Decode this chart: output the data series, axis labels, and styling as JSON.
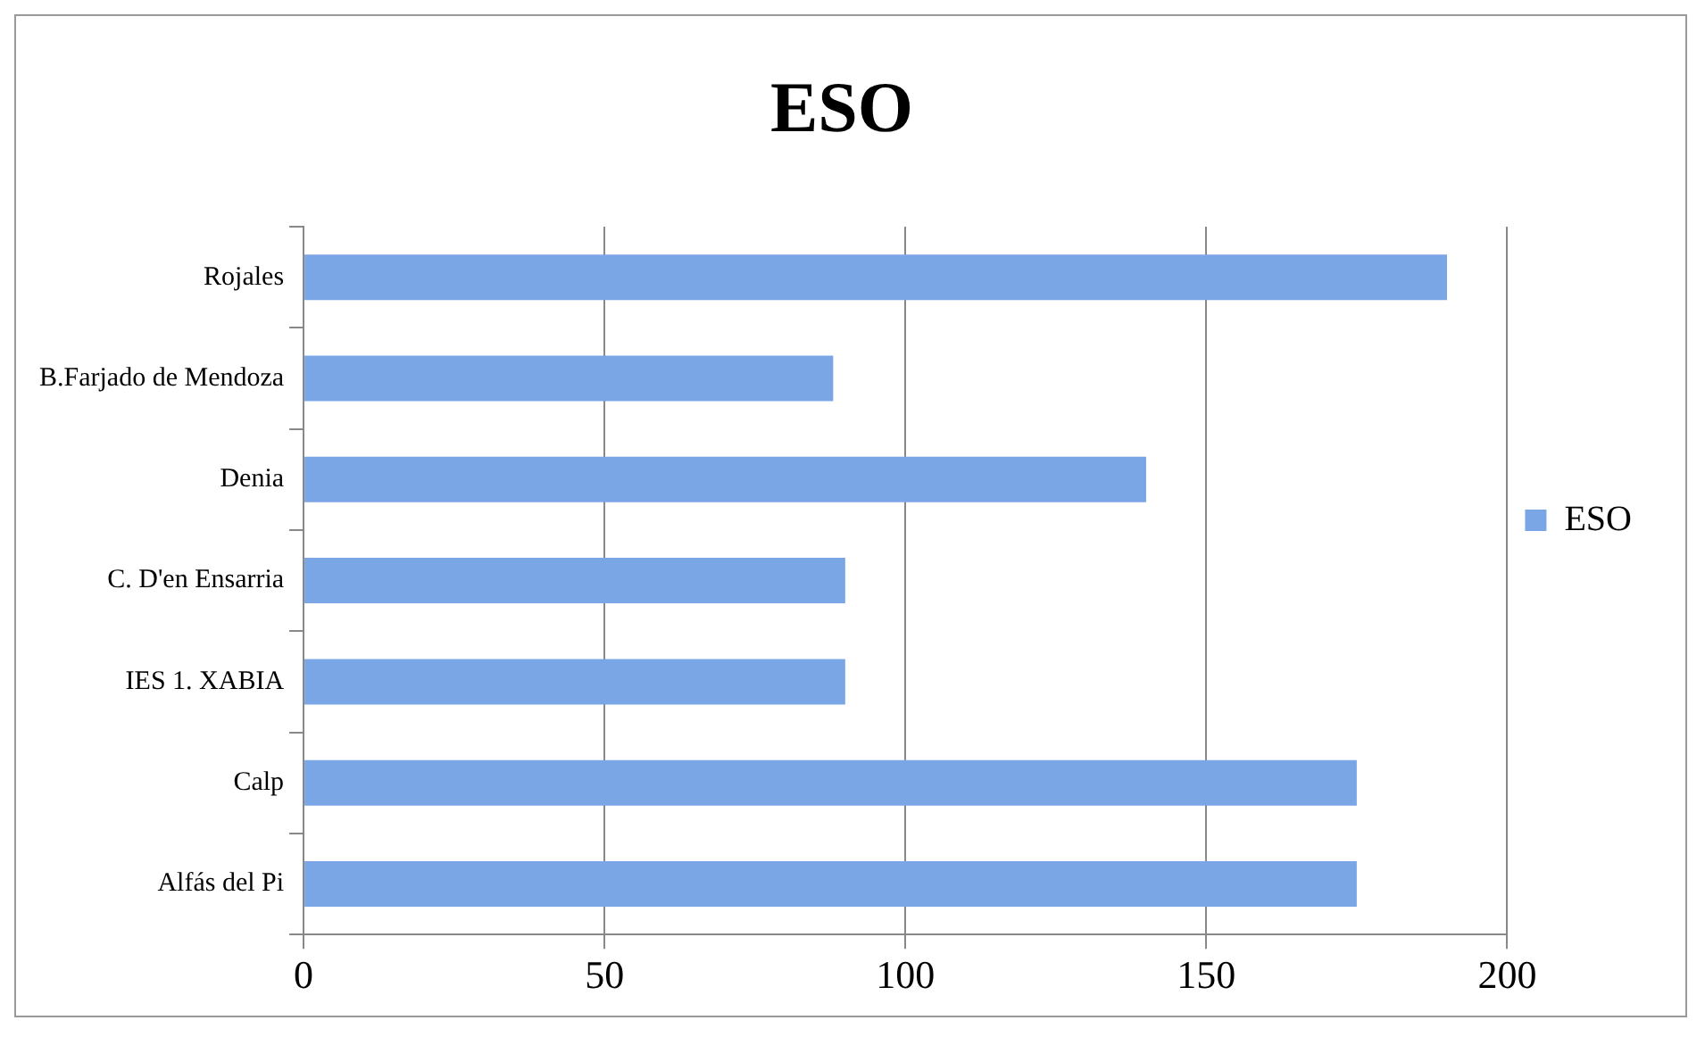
{
  "chart_data": {
    "type": "bar",
    "orientation": "horizontal",
    "title": "ESO",
    "categories": [
      "Rojales",
      "B.Farjado de Mendoza",
      "Denia",
      "C. D'en Ensarria",
      "IES 1. XABIA",
      "Calp",
      "Alfás del Pi"
    ],
    "series": [
      {
        "name": "ESO",
        "color": "#7aa6e6",
        "values": [
          190,
          88,
          140,
          90,
          90,
          175,
          175
        ]
      }
    ],
    "xlim": [
      0,
      200
    ],
    "xticks": [
      0,
      50,
      100,
      150,
      200
    ],
    "grid": "x",
    "legend": "right"
  }
}
